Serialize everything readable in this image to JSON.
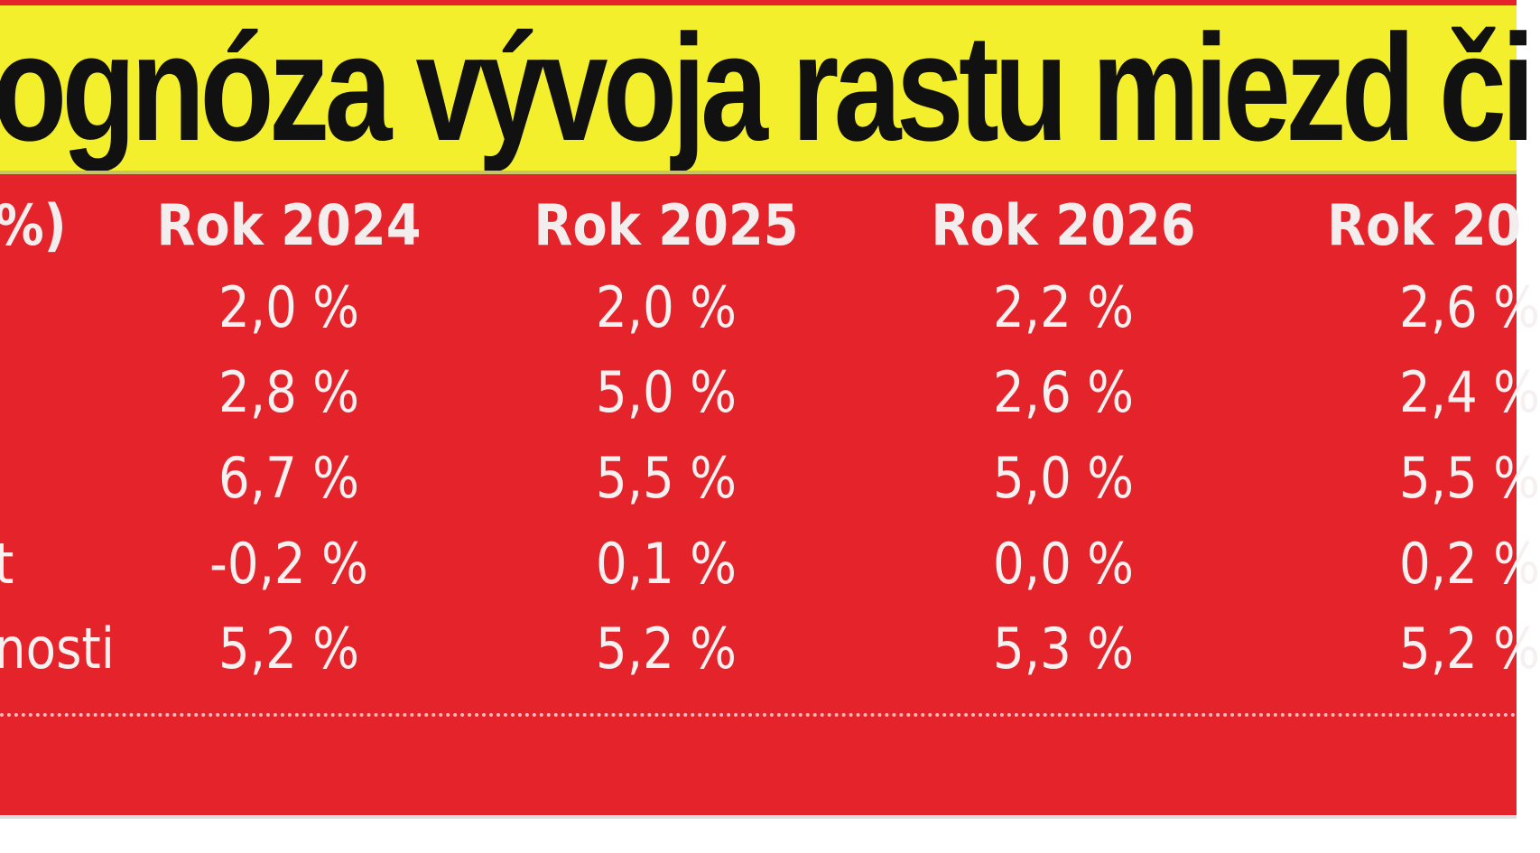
{
  "title": "ognóza vývoja rastu miezd či",
  "header": {
    "label": "%)",
    "years": [
      "Rok 2024",
      "Rok 2025",
      "Rok 2026",
      "Rok 20"
    ]
  },
  "rows": [
    {
      "label": "",
      "values": [
        "2,0 %",
        "2,0 %",
        "2,2 %",
        "2,6 %"
      ]
    },
    {
      "label": "",
      "values": [
        "2,8 %",
        "5,0 %",
        "2,6  %",
        "2,4 %"
      ]
    },
    {
      "label": "",
      "values": [
        "6,7 %",
        "5,5 %",
        "5,0 %",
        "5,5 %"
      ]
    },
    {
      "label": "t",
      "values": [
        "-0,2 %",
        "0,1 %",
        "0,0 %",
        "0,2 %"
      ]
    },
    {
      "label": "nosti",
      "values": [
        "5,2 %",
        "5,2 %",
        "5,3 %",
        "5,2 %"
      ]
    }
  ],
  "colors": {
    "title_background": "#f4ef2c",
    "title_text": "#111111",
    "panel_background": "#e5232b",
    "cell_text": "#f6f0f0"
  }
}
